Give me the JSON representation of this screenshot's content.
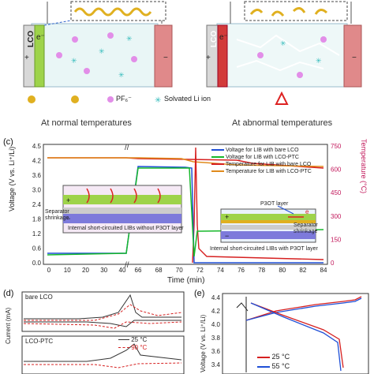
{
  "top": {
    "left_caption": "At normal temperatures",
    "right_caption": "At abnormal temperatures",
    "lco_label": "LCO",
    "plus": "+",
    "minus": "−",
    "electron": "e⁻",
    "legend_pf6": "PF₆⁻",
    "legend_li": "Solvated Li ion"
  },
  "panel_c": {
    "label": "(c)",
    "ylabel_left": "Voltage (V vs. Li⁺/Li)",
    "ylabel_right": "Temperature (°C)",
    "xlabel": "Time (min)",
    "yticks_left": [
      "0.0",
      "0.6",
      "1.2",
      "1.8",
      "2.4",
      "3.0",
      "3.6",
      "4.2",
      "4.5"
    ],
    "yticks_right": [
      "0",
      "150",
      "300",
      "450",
      "600",
      "750"
    ],
    "xticks": [
      "0",
      "10",
      "20",
      "30",
      "40",
      "66",
      "68",
      "70",
      "72",
      "74",
      "76",
      "78",
      "80",
      "82",
      "84"
    ],
    "legend": [
      {
        "text": "Voltage for LIB with bare LCO",
        "color": "#1f4fd6"
      },
      {
        "text": "Voltage for LIB with LCO-PTC",
        "color": "#17b82b"
      },
      {
        "text": "Temperature for LIB with bare LCO",
        "color": "#d62020"
      },
      {
        "text": "Temperature for LIB with LCO-PTC",
        "color": "#e08a1c"
      }
    ],
    "annot_separator_left": "Separator\nshrinkage",
    "annot_internal_left": "Internal short-circuited LIBs without P3OT layer",
    "annot_p3ot": "P3OT layer",
    "annot_separator_right": "Separator\nshrinkage",
    "annot_internal_right": "Internal short-circuited LIBs with P3OT layer",
    "inset_e": "e"
  },
  "panel_d": {
    "label": "(d)",
    "ylabel": "Current (mA)",
    "sub1": "bare LCO",
    "sub2": "LCO-PTC",
    "legend": [
      {
        "text": "25 °C",
        "color": "#333333"
      },
      {
        "text": "90 °C",
        "color": "#d62020"
      }
    ]
  },
  "panel_e": {
    "label": "(e)",
    "ylabel": "Voltage (V vs. Li⁺/Li)",
    "yticks": [
      "4.4",
      "4.2",
      "4.0",
      "3.8",
      "3.6",
      "3.4"
    ],
    "legend": [
      {
        "text": "25 °C",
        "color": "#d62020"
      },
      {
        "text": "55 °C",
        "color": "#1f4fd6"
      }
    ]
  },
  "colors": {
    "voltage_bare": "#1f4fd6",
    "voltage_ptc": "#17b82b",
    "temp_bare": "#d62020",
    "temp_ptc": "#e08a1c",
    "temp_axis": "#c2185b"
  }
}
